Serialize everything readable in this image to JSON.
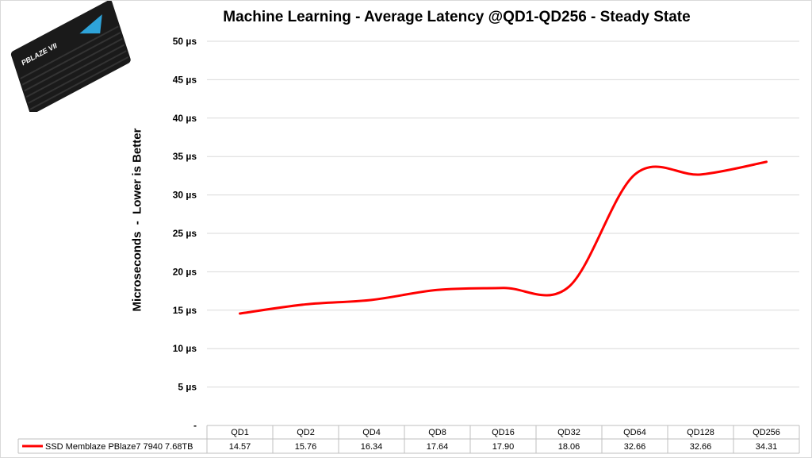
{
  "chart_data": {
    "type": "line",
    "title": "Machine Learning  - Average Latency @QD1-QD256  - Steady State",
    "ylabel": "Microseconds  -  Lower is Better",
    "xlabel": "",
    "categories": [
      "QD1",
      "QD2",
      "QD4",
      "QD8",
      "QD16",
      "QD32",
      "QD64",
      "QD128",
      "QD256"
    ],
    "series": [
      {
        "name": "SSD Memblaze PBlaze7 7940 7.68TB",
        "color": "#ff0000",
        "values": [
          14.57,
          15.76,
          16.34,
          17.64,
          17.9,
          18.06,
          32.66,
          32.66,
          34.31
        ]
      }
    ],
    "value_labels": [
      "14.57",
      "15.76",
      "16.34",
      "17.64",
      "17.90",
      "18.06",
      "32.66",
      "32.66",
      "34.31"
    ],
    "ylim": [
      0,
      50
    ],
    "yticks": [
      "-",
      "5 µs",
      "10 µs",
      "15 µs",
      "20 µs",
      "25 µs",
      "30 µs",
      "35 µs",
      "40 µs",
      "45 µs",
      "50 µs"
    ],
    "grid": true,
    "legend": "data-table-bottom"
  }
}
